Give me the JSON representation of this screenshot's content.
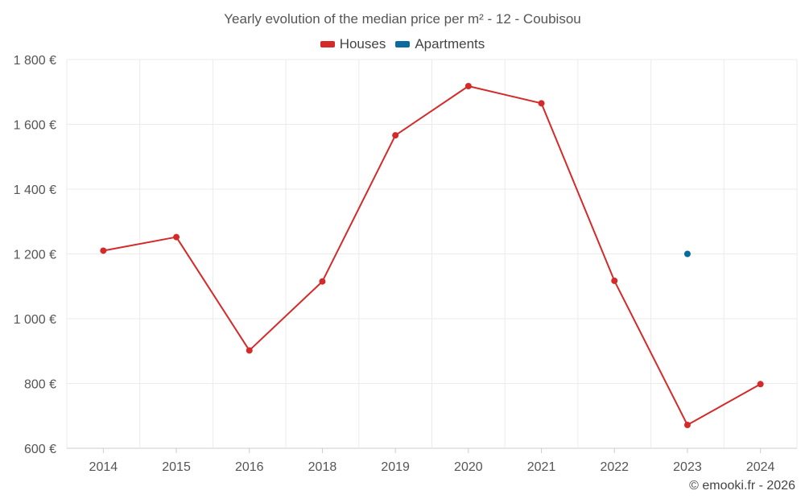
{
  "chart_data": {
    "type": "line",
    "title": "Yearly evolution of the median price per m² - 12 - Coubisou",
    "categories": [
      "2014",
      "2015",
      "2016",
      "2018",
      "2019",
      "2020",
      "2021",
      "2022",
      "2023",
      "2024"
    ],
    "series": [
      {
        "name": "Houses",
        "color": "#d42a2a",
        "values": [
          1210,
          1252,
          902,
          1115,
          1566,
          1718,
          1665,
          1117,
          672,
          798
        ]
      },
      {
        "name": "Apartments",
        "color": "#0b6aa0",
        "values": [
          null,
          null,
          null,
          null,
          null,
          null,
          null,
          null,
          1200,
          null
        ]
      }
    ],
    "y_ticks": [
      600,
      800,
      1000,
      1200,
      1400,
      1600,
      1800
    ],
    "y_tick_labels": [
      "600 €",
      "800 €",
      "1 000 €",
      "1 200 €",
      "1 400 €",
      "1 600 €",
      "1 800 €"
    ],
    "ylim": [
      600,
      1800
    ],
    "grid": true,
    "legend_position": "top-center"
  },
  "credit": "© emooki.fr - 2026"
}
